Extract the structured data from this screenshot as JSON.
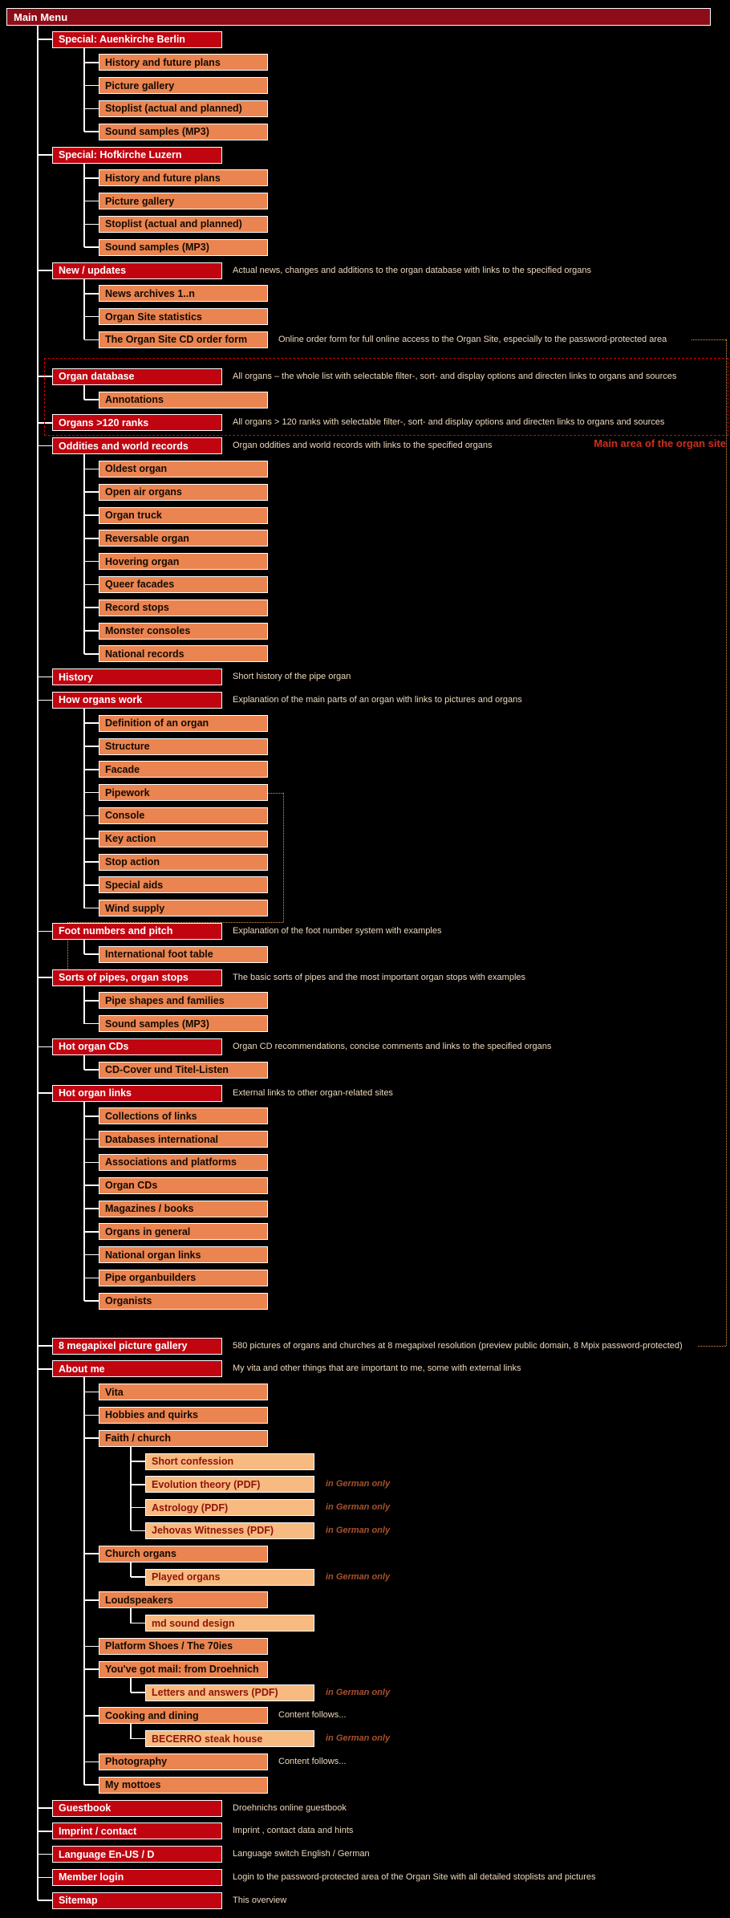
{
  "page": {
    "background": "#000000"
  },
  "main_menu": {
    "label": "Main Menu"
  },
  "region_label": "Main area of the organ site",
  "colors": {
    "level1_box": "#c00410",
    "level2_box": "#ea8450",
    "level3_box": "#f7ba80",
    "menu_bar": "#8c0d17",
    "connector": "#ffffff",
    "dashed_region": "#d40000",
    "dotted_link": "#e09a50",
    "annotation": "#edd9bd",
    "language_hint": "#a8512b",
    "region_label": "#cd2f1e"
  },
  "connectors": {
    "dotted_bracket": {
      "from": "Pipework",
      "to": "Sorts of pipes, organ stops"
    },
    "dotted_right_edge": {
      "from": "The Organ Site CD order form",
      "to": "8 megapixel picture gallery"
    }
  },
  "tree": [
    {
      "label": "Special: Auenkirche Berlin",
      "children": [
        {
          "label": "History and future plans"
        },
        {
          "label": "Picture gallery"
        },
        {
          "label": "Stoplist (actual and planned)"
        },
        {
          "label": "Sound samples (MP3)"
        }
      ]
    },
    {
      "label": "Special: Hofkirche Luzern",
      "children": [
        {
          "label": "History and future plans"
        },
        {
          "label": "Picture gallery"
        },
        {
          "label": "Stoplist (actual and planned)"
        },
        {
          "label": "Sound samples (MP3)"
        }
      ]
    },
    {
      "label": "New / updates",
      "note": "Actual news, changes and additions to the organ database with links to the specified organs",
      "children": [
        {
          "label": "News archives 1..n"
        },
        {
          "label": "Organ Site statistics"
        },
        {
          "label": "The Organ Site CD order form",
          "note": "Online order form for full online access to the Organ Site, especially to the password-protected area",
          "dotted_edge": "start"
        }
      ]
    },
    {
      "label": "Organ database",
      "note": "All organs – the whole list with selectable filter-, sort-  and display options and directen links to organs and sources",
      "gap_before": 17,
      "in_dashed_box": true,
      "children": [
        {
          "label": "Annotations"
        }
      ]
    },
    {
      "label": "Organs >120 ranks",
      "note": "All organs > 120 ranks with selectable filter-, sort-  and display options and directen links to organs and sources",
      "in_dashed_box": true
    },
    {
      "label": "Oddities and world records",
      "note": "Organ oddities and world records with links to the specified organs",
      "children": [
        {
          "label": "Oldest organ"
        },
        {
          "label": "Open air organs"
        },
        {
          "label": "Organ truck"
        },
        {
          "label": "Reversable organ"
        },
        {
          "label": "Hovering organ"
        },
        {
          "label": "Queer facades"
        },
        {
          "label": "Record stops"
        },
        {
          "label": "Monster consoles"
        },
        {
          "label": "National records"
        }
      ]
    },
    {
      "label": "History",
      "note": "Short history of the pipe organ"
    },
    {
      "label": "How organs work",
      "note": "Explanation of the  main parts of an organ with links to pictures and organs",
      "children": [
        {
          "label": "Definition of an organ"
        },
        {
          "label": "Structure"
        },
        {
          "label": "Facade"
        },
        {
          "label": "Pipework",
          "bracket": "start"
        },
        {
          "label": "Console"
        },
        {
          "label": "Key action"
        },
        {
          "label": "Stop action"
        },
        {
          "label": "Special aids"
        },
        {
          "label": "Wind supply"
        }
      ]
    },
    {
      "label": "Foot numbers and pitch",
      "note": "Explanation of the foot number system with examples",
      "children": [
        {
          "label": "International foot table"
        }
      ]
    },
    {
      "label": "Sorts of pipes, organ stops",
      "note": "The basic sorts of pipes and the most important organ stops with examples",
      "bracket": "end",
      "children": [
        {
          "label": "Pipe shapes and families"
        },
        {
          "label": "Sound samples (MP3)"
        }
      ]
    },
    {
      "label": "Hot organ CDs",
      "note": "Organ CD recommendations, concise comments and links to the specified organs",
      "children": [
        {
          "label": "CD-Cover und Titel-Listen"
        }
      ]
    },
    {
      "label": "Hot organ links",
      "note": "External links to other organ-related sites",
      "children": [
        {
          "label": "Collections of links"
        },
        {
          "label": "Databases international"
        },
        {
          "label": "Associations and platforms"
        },
        {
          "label": "Organ CDs"
        },
        {
          "label": "Magazines / books"
        },
        {
          "label": "Organs in general"
        },
        {
          "label": "National organ links"
        },
        {
          "label": "Pipe organbuilders"
        },
        {
          "label": "Organists"
        }
      ]
    },
    {
      "label": "8 megapixel picture gallery",
      "note": "580 pictures of organs and churches at 8 megapixel resolution (preview public domain, 8 Mpix password-protected)",
      "gap_before": 27,
      "dotted_edge": "end"
    },
    {
      "label": "About me",
      "note": "My vita and other things that are important to me, some with external links",
      "children": [
        {
          "label": "Vita"
        },
        {
          "label": "Hobbies and quirks"
        },
        {
          "label": "Faith / church",
          "children": [
            {
              "label": "Short confession"
            },
            {
              "label": "Evolution theory (PDF)",
              "tag": "in German only"
            },
            {
              "label": "Astrology (PDF)",
              "tag": "in German only"
            },
            {
              "label": "Jehovas Witnesses (PDF)",
              "tag": "in German only"
            }
          ]
        },
        {
          "label": "Church organs",
          "children": [
            {
              "label": "Played organs",
              "tag": "in German only"
            }
          ]
        },
        {
          "label": "Loudspeakers",
          "children": [
            {
              "label": "md  sound design"
            }
          ]
        },
        {
          "label": "Platform Shoes / The 70ies"
        },
        {
          "label": "You've got mail: from Droehnich",
          "children": [
            {
              "label": "Letters and answers (PDF)",
              "tag": "in German only"
            }
          ]
        },
        {
          "label": "Cooking and dining",
          "note": "Content follows...",
          "children": [
            {
              "label": "BECERRO steak house",
              "tag": "in German only"
            }
          ]
        },
        {
          "label": "Photography",
          "note": "Content follows..."
        },
        {
          "label": "My mottoes"
        }
      ]
    },
    {
      "label": "Guestbook",
      "note": "Droehnichs online guestbook"
    },
    {
      "label": "Imprint / contact",
      "note": "Imprint , contact data and hints"
    },
    {
      "label": "Language En-US / D",
      "note": "Language switch English / German"
    },
    {
      "label": "Member login",
      "note": "Login to the password-protected area of the Organ Site with all detailed stoplists and pictures"
    },
    {
      "label": "Sitemap",
      "note": "This overview"
    }
  ]
}
